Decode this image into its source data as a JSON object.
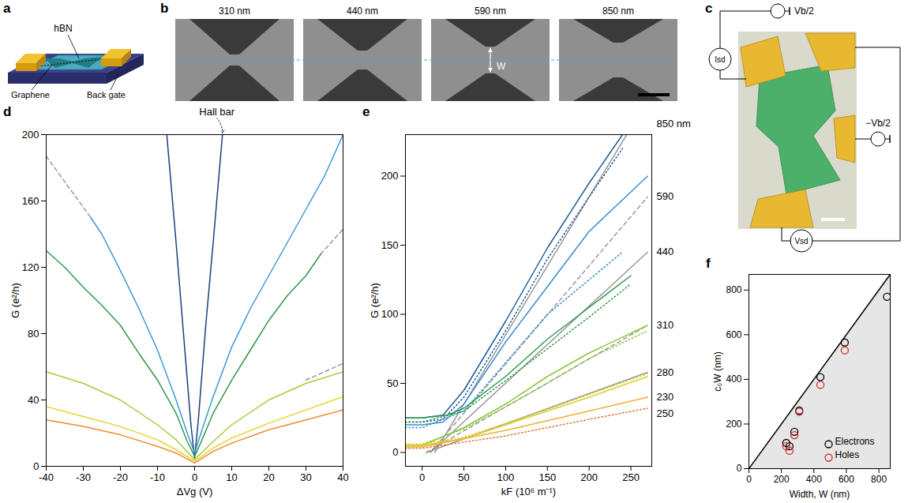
{
  "panels": {
    "a": {
      "label": "a",
      "hbn": "hBN",
      "graphene": "Graphene",
      "back_gate": "Back gate"
    },
    "b": {
      "label": "b",
      "widths": [
        "310 nm",
        "440 nm",
        "590 nm",
        "850 nm"
      ],
      "width_symbol": "W"
    },
    "c": {
      "label": "c",
      "source_top": "Vb/2",
      "current": "Isd",
      "voltage": "Vsd",
      "source_right": "−Vb/2"
    }
  },
  "chart_data": [
    {
      "type": "line",
      "title": "d",
      "x_label": "ΔVg (V)",
      "y_label": "G (e²/h)",
      "xlim": [
        -40,
        40
      ],
      "xticks": [
        -40,
        -30,
        -20,
        -10,
        0,
        10,
        20,
        30,
        40
      ],
      "ylim": [
        0,
        200
      ],
      "yticks": [
        0,
        40,
        80,
        120,
        160,
        200
      ],
      "grid": false,
      "annotations": [
        {
          "text": "Hall bar",
          "x": 6,
          "y": 210
        }
      ],
      "series": [
        {
          "color": "#999999",
          "line_style": "dashed",
          "x": [
            -40,
            -28
          ],
          "values": [
            187,
            150
          ]
        },
        {
          "color": "#999999",
          "line_style": "dashed",
          "x": [
            34,
            40
          ],
          "values": [
            128,
            143
          ]
        },
        {
          "color": "#999999",
          "line_style": "dashed",
          "x": [
            30,
            40
          ],
          "values": [
            52,
            62
          ]
        },
        {
          "color": "#1b3f7a",
          "x": [
            -7.5,
            -5,
            -3,
            -1,
            0,
            1,
            3,
            5,
            7.5
          ],
          "values": [
            200,
            135,
            80,
            25,
            5,
            28,
            85,
            135,
            200
          ]
        },
        {
          "color": "#3a9ad9",
          "x": [
            -28,
            -25,
            -20,
            -15,
            -10,
            -5,
            -2,
            0,
            2,
            5,
            10,
            15,
            20,
            25,
            30,
            35,
            40
          ],
          "values": [
            150,
            140,
            118,
            95,
            70,
            40,
            20,
            8,
            22,
            42,
            72,
            95,
            115,
            135,
            155,
            175,
            200
          ]
        },
        {
          "color": "#2e9a4a",
          "x": [
            -40,
            -35,
            -30,
            -25,
            -20,
            -15,
            -10,
            -5,
            -2,
            0,
            2,
            5,
            10,
            15,
            20,
            25,
            30,
            34
          ],
          "values": [
            130,
            120,
            108,
            97,
            85,
            68,
            52,
            32,
            15,
            6,
            16,
            32,
            52,
            70,
            88,
            103,
            115,
            128
          ]
        },
        {
          "color": "#a8cc3a",
          "x": [
            -40,
            -30,
            -20,
            -10,
            -5,
            0,
            5,
            10,
            20,
            30,
            40
          ],
          "values": [
            57,
            50,
            40,
            25,
            16,
            4,
            15,
            25,
            40,
            50,
            57
          ]
        },
        {
          "color": "#e6d42a",
          "x": [
            -40,
            -30,
            -20,
            -10,
            -5,
            0,
            5,
            10,
            20,
            30,
            40
          ],
          "values": [
            36,
            30,
            24,
            16,
            10,
            3,
            11,
            17,
            26,
            34,
            42
          ]
        },
        {
          "color": "#f08a30",
          "x": [
            -40,
            -30,
            -20,
            -10,
            -5,
            0,
            5,
            10,
            20,
            30,
            40
          ],
          "values": [
            28,
            24,
            19,
            12,
            8,
            2,
            9,
            14,
            22,
            28,
            34
          ]
        }
      ]
    },
    {
      "type": "line",
      "title": "e",
      "x_label": "kF (10⁶ m⁻¹)",
      "y_label": "G (e²/h)",
      "xlim": [
        -20,
        275
      ],
      "xticks": [
        0,
        50,
        100,
        150,
        200,
        250
      ],
      "ylim": [
        -10,
        230
      ],
      "yticks": [
        0,
        50,
        100,
        150,
        200
      ],
      "grid": false,
      "annotations": [
        {
          "text": "850 nm",
          "y": 238
        },
        {
          "text": "590",
          "y": 185
        },
        {
          "text": "440",
          "y": 145
        },
        {
          "text": "310",
          "y": 92
        },
        {
          "text": "280",
          "y": 58
        },
        {
          "text": "230",
          "y": 40
        },
        {
          "text": "250",
          "y": 28
        }
      ],
      "series": [
        {
          "color": "#999999",
          "line_style": "solid",
          "x": [
            15,
            245
          ],
          "values": [
            0,
            230
          ]
        },
        {
          "color": "#999999",
          "line_style": "dashed",
          "x": [
            10,
            270
          ],
          "values": [
            0,
            185
          ]
        },
        {
          "color": "#999999",
          "line_style": "solid",
          "x": [
            10,
            270
          ],
          "values": [
            0,
            145
          ]
        },
        {
          "color": "#999999",
          "line_style": "dashed",
          "x": [
            5,
            270
          ],
          "values": [
            0,
            92
          ]
        },
        {
          "color": "#999999",
          "line_style": "solid",
          "x": [
            5,
            270
          ],
          "values": [
            0,
            58
          ]
        },
        {
          "color": "#1f5c99",
          "line_style": "solid",
          "x": [
            -20,
            0,
            25,
            50,
            75,
            100,
            150,
            200,
            240
          ],
          "values": [
            25,
            25,
            27,
            45,
            70,
            95,
            148,
            195,
            230
          ]
        },
        {
          "color": "#1f5c99",
          "line_style": "dotted",
          "x": [
            -20,
            0,
            25,
            50,
            100,
            150,
            200,
            240
          ],
          "values": [
            22,
            22,
            24,
            40,
            88,
            140,
            185,
            220
          ]
        },
        {
          "color": "#3a8fd0",
          "line_style": "solid",
          "x": [
            -20,
            0,
            25,
            50,
            100,
            150,
            200,
            270
          ],
          "values": [
            20,
            20,
            22,
            35,
            80,
            120,
            160,
            200
          ]
        },
        {
          "color": "#3a8fd0",
          "line_style": "dotted",
          "x": [
            -20,
            0,
            50,
            100,
            150,
            200,
            240
          ],
          "values": [
            18,
            18,
            30,
            65,
            100,
            125,
            145
          ]
        },
        {
          "color": "#2e9a4a",
          "line_style": "solid",
          "x": [
            -20,
            0,
            30,
            50,
            100,
            150,
            200,
            250
          ],
          "values": [
            25,
            25,
            27,
            32,
            55,
            82,
            105,
            128
          ]
        },
        {
          "color": "#2e9a4a",
          "line_style": "dotted",
          "x": [
            -20,
            0,
            50,
            100,
            150,
            200,
            250
          ],
          "values": [
            22,
            22,
            30,
            52,
            75,
            98,
            122
          ]
        },
        {
          "color": "#8cc63f",
          "line_style": "solid",
          "x": [
            -20,
            0,
            50,
            100,
            150,
            200,
            270
          ],
          "values": [
            5,
            5,
            18,
            35,
            55,
            72,
            92
          ]
        },
        {
          "color": "#8cc63f",
          "line_style": "dotted",
          "x": [
            -20,
            0,
            50,
            100,
            150,
            200,
            270
          ],
          "values": [
            6,
            6,
            17,
            33,
            50,
            68,
            88
          ]
        },
        {
          "color": "#d8cf2a",
          "line_style": "solid",
          "x": [
            -20,
            0,
            50,
            100,
            150,
            200,
            270
          ],
          "values": [
            5,
            5,
            10,
            20,
            30,
            40,
            55
          ]
        },
        {
          "color": "#d8cf2a",
          "line_style": "dotted",
          "x": [
            -20,
            0,
            50,
            100,
            150,
            200,
            270
          ],
          "values": [
            6,
            6,
            11,
            21,
            31,
            42,
            57
          ]
        },
        {
          "color": "#f0b030",
          "line_style": "solid",
          "x": [
            -20,
            0,
            100,
            200,
            270
          ],
          "values": [
            4,
            4,
            16,
            30,
            40
          ]
        },
        {
          "color": "#e8702a",
          "line_style": "dotted",
          "x": [
            -20,
            0,
            100,
            200,
            270
          ],
          "values": [
            3,
            3,
            12,
            24,
            32
          ]
        }
      ]
    },
    {
      "type": "scatter",
      "title": "f",
      "x_label": "Width, W (nm)",
      "y_label": "c₀W (nm)",
      "xlim": [
        0,
        870
      ],
      "xticks": [
        0,
        200,
        400,
        600,
        800
      ],
      "ylim": [
        0,
        870
      ],
      "yticks": [
        0,
        200,
        400,
        600,
        800
      ],
      "grid": false,
      "legend": "bottom-right",
      "series": [
        {
          "type": "area",
          "color": "#e6e6e6",
          "x": [
            0,
            870
          ],
          "values": [
            0,
            870
          ]
        },
        {
          "type": "line",
          "color": "#000000",
          "line_style": "solid",
          "x": [
            0,
            870
          ],
          "values": [
            0,
            870
          ]
        },
        {
          "name": "Electrons",
          "type": "scatter",
          "marker": "circle",
          "color": "#000000",
          "x": [
            230,
            250,
            280,
            310,
            440,
            590,
            850
          ],
          "values": [
            115,
            100,
            165,
            260,
            410,
            565,
            770
          ]
        },
        {
          "name": "Holes",
          "type": "scatter",
          "marker": "circle",
          "color": "#d62728",
          "x": [
            230,
            250,
            280,
            310,
            440,
            590
          ],
          "values": [
            100,
            80,
            150,
            255,
            375,
            530
          ]
        }
      ]
    }
  ]
}
